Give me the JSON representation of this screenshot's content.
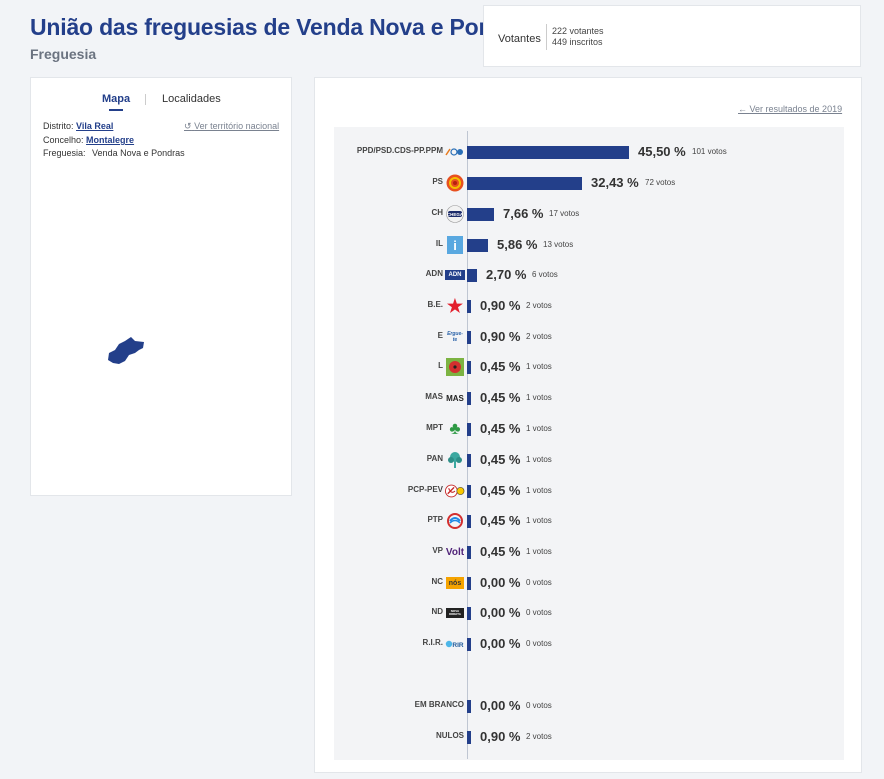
{
  "header": {
    "title": "União das freguesias de Venda Nova e Pondras",
    "subtitle": "Freguesia"
  },
  "votantes": {
    "label": "Votantes",
    "votantes_text": "222 votantes",
    "inscritos_text": "449 inscritos"
  },
  "map_panel": {
    "tabs": [
      {
        "label": "Mapa"
      },
      {
        "label": "Localidades"
      }
    ],
    "ver_nacional": "Ver território nacional",
    "distrito_label": "Distrito:",
    "distrito_value": "Vila Real",
    "concelho_label": "Concelho:",
    "concelho_value": "Montalegre",
    "freguesia_label": "Freguesia:",
    "freguesia_value": "Venda Nova e Pondras",
    "map_color": "#233f8a"
  },
  "results": {
    "ver_2019": "Ver resultados de 2019",
    "bar_color": "#233f8a"
  },
  "chart_data": {
    "type": "bar",
    "orientation": "horizontal",
    "categories": [
      "PPD/PSD.CDS-PP.PPM",
      "PS",
      "CH",
      "IL",
      "ADN",
      "B.E.",
      "E",
      "L",
      "MAS",
      "MPT",
      "PAN",
      "PCP-PEV",
      "PTP",
      "VP",
      "NC",
      "ND",
      "R.I.R.",
      "EM BRANCO",
      "NULOS"
    ],
    "series": [
      {
        "values": [
          45.5,
          32.43,
          7.66,
          5.86,
          2.7,
          0.9,
          0.9,
          0.45,
          0.45,
          0.45,
          0.45,
          0.45,
          0.45,
          0.45,
          0.0,
          0.0,
          0.0,
          0.0,
          0.9
        ]
      }
    ],
    "rows": [
      {
        "party": "PPD/PSD.CDS-PP.PPM",
        "pct": "45,50 %",
        "votos": "101 votos",
        "value": 45.5,
        "logo": "coalition-logo-icon"
      },
      {
        "party": "PS",
        "pct": "32,43 %",
        "votos": "72 votos",
        "value": 32.43,
        "logo": "ps-fist-rose-icon"
      },
      {
        "party": "CH",
        "pct": "7,66 %",
        "votos": "17 votos",
        "value": 7.66,
        "logo": "chega-logo-icon"
      },
      {
        "party": "IL",
        "pct": "5,86 %",
        "votos": "13 votos",
        "value": 5.86,
        "logo": "il-logo-icon",
        "logo_text": "i"
      },
      {
        "party": "ADN",
        "pct": "2,70 %",
        "votos": "6 votos",
        "value": 2.7,
        "logo": "adn-logo-icon",
        "logo_text": "ADN"
      },
      {
        "party": "B.E.",
        "pct": "0,90 %",
        "votos": "2 votos",
        "value": 0.9,
        "logo": "star-logo-icon",
        "logo_text": "★"
      },
      {
        "party": "E",
        "pct": "0,90 %",
        "votos": "2 votos",
        "value": 0.9,
        "logo": "ergue-te-logo-icon",
        "logo_text": "Ergue-te"
      },
      {
        "party": "L",
        "pct": "0,45 %",
        "votos": "1 votos",
        "value": 0.45,
        "logo": "livre-poppy-icon"
      },
      {
        "party": "MAS",
        "pct": "0,45 %",
        "votos": "1 votos",
        "value": 0.45,
        "logo": "mas-logo-icon",
        "logo_text": "MAS"
      },
      {
        "party": "MPT",
        "pct": "0,45 %",
        "votos": "1 votos",
        "value": 0.45,
        "logo": "clover-logo-icon",
        "logo_text": "♣"
      },
      {
        "party": "PAN",
        "pct": "0,45 %",
        "votos": "1 votos",
        "value": 0.45,
        "logo": "pan-tree-icon"
      },
      {
        "party": "PCP-PEV",
        "pct": "0,45 %",
        "votos": "1 votos",
        "value": 0.45,
        "logo": "hammer-sickle-icon"
      },
      {
        "party": "PTP",
        "pct": "0,45 %",
        "votos": "1 votos",
        "value": 0.45,
        "logo": "ptp-logo-icon"
      },
      {
        "party": "VP",
        "pct": "0,45 %",
        "votos": "1 votos",
        "value": 0.45,
        "logo": "volt-logo-icon",
        "logo_text": "Volt"
      },
      {
        "party": "NC",
        "pct": "0,00 %",
        "votos": "0 votos",
        "value": 0.0,
        "logo": "nos-cidadaos-logo-icon",
        "logo_text": "nós"
      },
      {
        "party": "ND",
        "pct": "0,00 %",
        "votos": "0 votos",
        "value": 0.0,
        "logo": "nova-direita-logo-icon",
        "logo_text": "NOVA DIREITA"
      },
      {
        "party": "R.I.R.",
        "pct": "0,00 %",
        "votos": "0 votos",
        "value": 0.0,
        "logo": "rir-logo-icon",
        "logo_text": "RIR"
      },
      {
        "party": "EM BRANCO",
        "pct": "0,00 %",
        "votos": "0 votos",
        "value": 0.0,
        "logo": ""
      },
      {
        "party": "NULOS",
        "pct": "0,90 %",
        "votos": "2 votos",
        "value": 0.9,
        "logo": ""
      }
    ],
    "xlim": [
      0,
      45.5
    ]
  }
}
